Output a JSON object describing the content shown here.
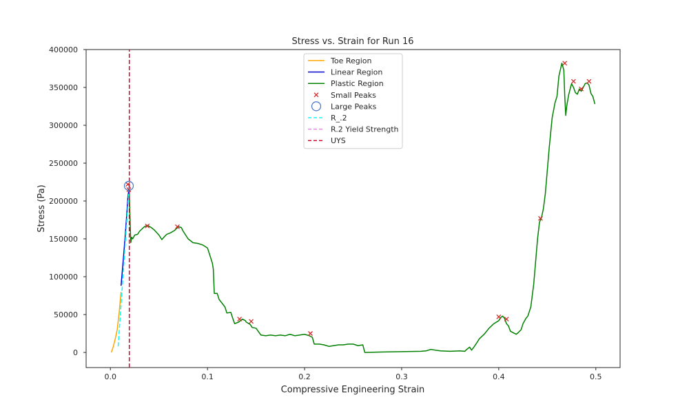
{
  "chart_data": {
    "type": "line",
    "title": "Stress vs. Strain for Run 16",
    "xlabel": "Compressive Engineering Strain",
    "ylabel": "Stress (Pa)",
    "xlim": [
      -0.025,
      0.525
    ],
    "ylim": [
      -20000,
      400000
    ],
    "xticks": [
      0.0,
      0.1,
      0.2,
      0.3,
      0.4,
      0.5
    ],
    "xtick_labels": [
      "0.0",
      "0.1",
      "0.2",
      "0.3",
      "0.4",
      "0.5"
    ],
    "yticks": [
      0,
      50000,
      100000,
      150000,
      200000,
      250000,
      300000,
      350000,
      400000
    ],
    "ytick_labels": [
      "0",
      "50000",
      "100000",
      "150000",
      "200000",
      "250000",
      "300000",
      "350000",
      "400000"
    ],
    "grid": false,
    "legend_position": "top-center",
    "series": [
      {
        "name": "Toe Region",
        "color": "#ffa500",
        "style": "solid",
        "x": [
          0.001,
          0.003,
          0.005,
          0.007,
          0.009,
          0.011
        ],
        "y": [
          0,
          8000,
          18000,
          30000,
          52000,
          80000
        ]
      },
      {
        "name": "Linear Region",
        "color": "#0000cd",
        "style": "solid",
        "x": [
          0.011,
          0.013,
          0.015,
          0.017,
          0.018,
          0.019,
          0.0195
        ],
        "y": [
          88000,
          118000,
          150000,
          185000,
          205000,
          215000,
          220000
        ]
      },
      {
        "name": "Plastic Region",
        "color": "#008000",
        "style": "solid",
        "x": [
          0.0195,
          0.0205,
          0.021,
          0.022,
          0.023,
          0.025,
          0.028,
          0.03,
          0.035,
          0.038,
          0.042,
          0.045,
          0.05,
          0.053,
          0.055,
          0.058,
          0.062,
          0.066,
          0.07,
          0.073,
          0.075,
          0.08,
          0.085,
          0.09,
          0.095,
          0.1,
          0.102,
          0.105,
          0.106,
          0.107,
          0.11,
          0.112,
          0.115,
          0.118,
          0.12,
          0.124,
          0.126,
          0.128,
          0.132,
          0.136,
          0.139,
          0.14,
          0.144,
          0.146,
          0.15,
          0.155,
          0.16,
          0.165,
          0.17,
          0.175,
          0.18,
          0.185,
          0.19,
          0.195,
          0.2,
          0.205,
          0.208,
          0.21,
          0.215,
          0.22,
          0.225,
          0.23,
          0.235,
          0.24,
          0.245,
          0.25,
          0.255,
          0.26,
          0.262,
          0.28,
          0.3,
          0.32,
          0.325,
          0.33,
          0.335,
          0.34,
          0.35,
          0.36,
          0.365,
          0.367,
          0.37,
          0.372,
          0.375,
          0.378,
          0.38,
          0.385,
          0.39,
          0.395,
          0.4,
          0.402,
          0.404,
          0.406,
          0.408,
          0.41,
          0.412,
          0.415,
          0.418,
          0.42,
          0.423,
          0.425,
          0.428,
          0.43,
          0.433,
          0.436,
          0.44,
          0.442,
          0.444,
          0.446,
          0.448,
          0.45,
          0.452,
          0.455,
          0.458,
          0.46,
          0.462,
          0.465,
          0.467,
          0.468,
          0.469,
          0.47,
          0.472,
          0.475,
          0.477,
          0.479,
          0.481,
          0.483,
          0.485,
          0.487,
          0.489,
          0.491,
          0.493,
          0.495,
          0.497,
          0.499
        ],
        "y": [
          210000,
          165000,
          145000,
          152000,
          150000,
          155000,
          156000,
          160000,
          166000,
          168000,
          165000,
          162000,
          155000,
          149000,
          152000,
          156000,
          158000,
          161000,
          166000,
          165000,
          160000,
          150000,
          145000,
          144000,
          142000,
          138000,
          130000,
          118000,
          110000,
          78000,
          78000,
          70000,
          65000,
          60000,
          52000,
          53000,
          45000,
          38000,
          40000,
          44000,
          42000,
          40000,
          37000,
          33000,
          32000,
          23000,
          22000,
          23000,
          22000,
          23000,
          22000,
          24000,
          22000,
          23000,
          24000,
          22000,
          20000,
          11000,
          11000,
          10000,
          8000,
          9000,
          10000,
          10000,
          11000,
          11000,
          9000,
          10000,
          0,
          500,
          1000,
          1500,
          2000,
          4000,
          3000,
          2000,
          1500,
          2000,
          1500,
          4000,
          7000,
          3000,
          8000,
          14000,
          18000,
          24000,
          32000,
          38000,
          42000,
          46000,
          48000,
          45000,
          38000,
          35000,
          28000,
          26000,
          24000,
          26000,
          30000,
          38000,
          45000,
          48000,
          60000,
          90000,
          150000,
          172000,
          178000,
          190000,
          210000,
          240000,
          270000,
          310000,
          330000,
          338000,
          365000,
          382000,
          373000,
          338000,
          313000,
          325000,
          340000,
          355000,
          350000,
          343000,
          341000,
          348000,
          345000,
          350000,
          355000,
          356000,
          353000,
          342000,
          338000,
          328000
        ]
      },
      {
        "name": "Small Peaks",
        "color": "#d62728",
        "style": "marker-x",
        "x": [
          0.018,
          0.019,
          0.038,
          0.069,
          0.133,
          0.145,
          0.206,
          0.4,
          0.408,
          0.443,
          0.468,
          0.477,
          0.485,
          0.493
        ],
        "y": [
          222000,
          215000,
          167000,
          166000,
          44000,
          41000,
          25000,
          47000,
          44000,
          177000,
          382000,
          358000,
          348000,
          358000
        ]
      },
      {
        "name": "Large Peaks",
        "color": "#4472c4",
        "style": "marker-circle",
        "x": [
          0.019
        ],
        "y": [
          220000
        ]
      },
      {
        "name": "R_.2",
        "color": "#00ffff",
        "style": "dashed",
        "x": [
          0.008,
          0.0195
        ],
        "y": [
          8000,
          222000
        ]
      },
      {
        "name": "R.2 Yield Strength",
        "color": "#ee82ee",
        "style": "dashed",
        "x": [
          0.0195,
          0.0195
        ],
        "y": [
          -20000,
          400000
        ]
      },
      {
        "name": "UYS",
        "color": "#e8002a",
        "style": "dashed",
        "x": [
          0.0195,
          0.0195
        ],
        "y": [
          -20000,
          400000
        ]
      }
    ]
  }
}
